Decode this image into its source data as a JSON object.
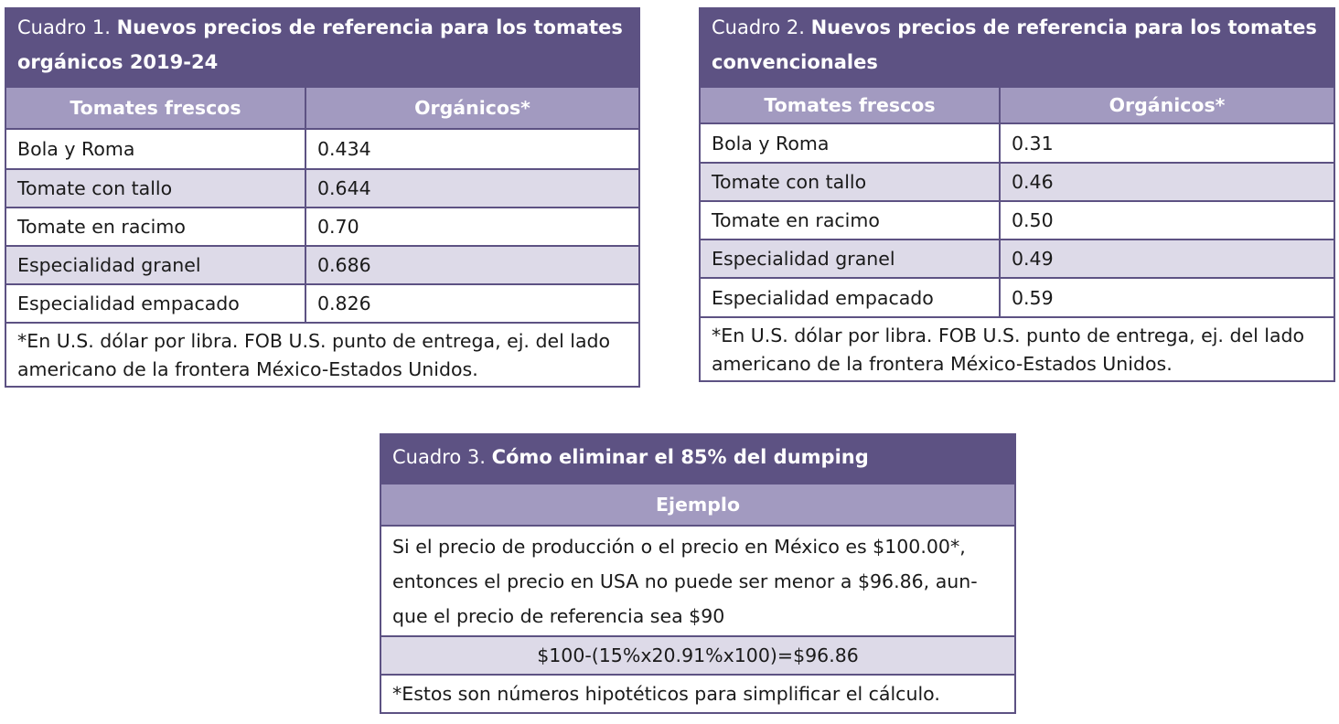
{
  "table1": {
    "caption_num": "Cuadro 1.",
    "caption_title": "Nuevos precios de referencia para los tomates orgánicos 2019-24",
    "headers": [
      "Tomates frescos",
      "Orgánicos*"
    ],
    "rows": [
      {
        "name": "Bola y Roma",
        "value": "0.434"
      },
      {
        "name": "Tomate con tallo",
        "value": "0.644"
      },
      {
        "name": "Tomate en racimo",
        "value": "0.70"
      },
      {
        "name": "Especialidad granel",
        "value": "0.686"
      },
      {
        "name": "Especialidad empacado",
        "value": "0.826"
      }
    ],
    "note": "*En U.S. dólar por libra. FOB U.S. punto de entrega, ej. del lado americano de la frontera México-Estados Unidos."
  },
  "table2": {
    "caption_num": "Cuadro 2.",
    "caption_title": "Nuevos precios de referencia para los tomates convencionales",
    "headers": [
      "Tomates frescos",
      "Orgánicos*"
    ],
    "rows": [
      {
        "name": "Bola y Roma",
        "value": "0.31"
      },
      {
        "name": "Tomate con tallo",
        "value": "0.46"
      },
      {
        "name": "Tomate en racimo",
        "value": "0.50"
      },
      {
        "name": "Especialidad granel",
        "value": "0.49"
      },
      {
        "name": "Especialidad empacado",
        "value": "0.59"
      }
    ],
    "note": "*En U.S. dólar por libra. FOB U.S. punto de entrega, ej. del lado americano de la frontera México-Estados Unidos."
  },
  "table3": {
    "caption_num": "Cuadro 3.",
    "caption_title": "Cómo eliminar el 85% del dumping",
    "header": "Ejemplo",
    "body_lines": [
      "Si el precio de producción o el precio en México es $100.00*,",
      "entonces el precio en USA no puede ser menor a $96.86, aun-",
      "que el precio de referencia sea $90"
    ],
    "formula": "$100-(15%x20.91%x100)=$96.86",
    "note": "*Estos son números hipotéticos para simplificar el cálculo."
  }
}
